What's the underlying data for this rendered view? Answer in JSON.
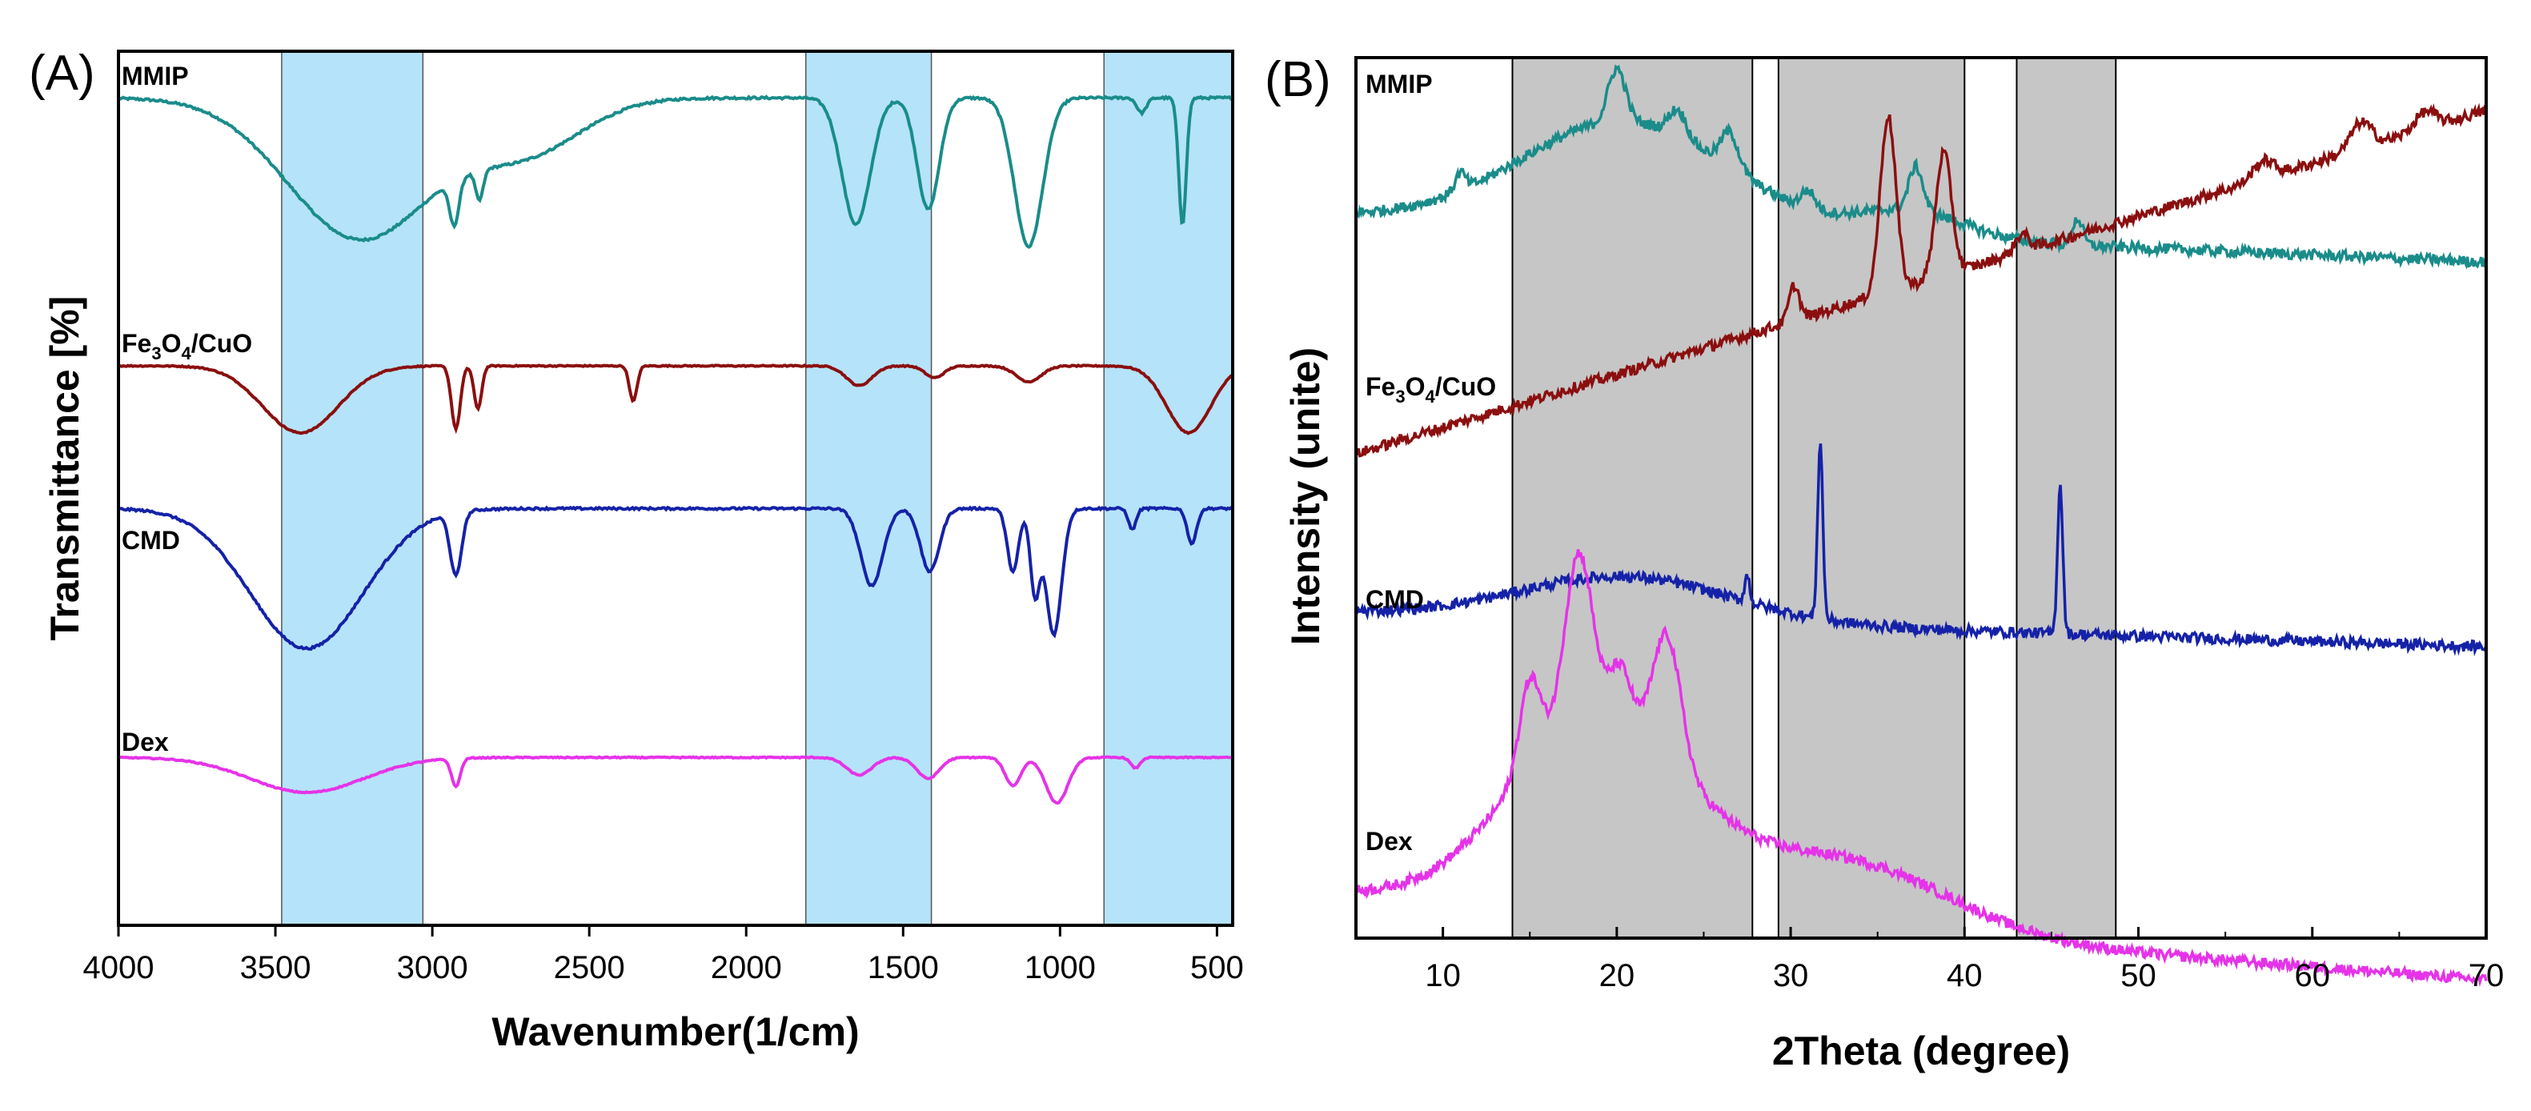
{
  "colors": {
    "mmip": "#1a8c8a",
    "fe3o4cuo": "#8b0f0f",
    "cmd": "#1522a8",
    "dex": "#e533e8",
    "band_ftir": "#b5e3f9",
    "band_xrd": "#c6c6c6",
    "axis": "#000000"
  },
  "chart_data": [
    {
      "panel": "(A)",
      "type": "line",
      "xlabel": "Wavenumber(1/cm)",
      "ylabel": "Transmittance [%]",
      "xlim": [
        4000,
        450
      ],
      "x_reversed": true,
      "x_ticks": [
        4000,
        3500,
        3000,
        2500,
        2000,
        1500,
        1000,
        500
      ],
      "x_tick_labels": [
        "4000",
        "3500",
        "3000",
        "2500",
        "2000",
        "1500",
        "1000",
        "500"
      ],
      "y_ticks": [],
      "shaded_bands": [
        [
          3480,
          3030
        ],
        [
          1810,
          1410
        ],
        [
          860,
          450
        ]
      ],
      "series": [
        {
          "name": "MMIP",
          "label_text": "MMIP",
          "color_key": "mmip",
          "offset": 0.78,
          "amplitude": 0.17,
          "baseline": 0.98,
          "features": [
            [
              3230,
              0.95,
              230
            ],
            [
              2930,
              0.3,
              15
            ],
            [
              2850,
              0.2,
              12
            ],
            [
              2700,
              0.35,
              180
            ],
            [
              1650,
              0.85,
              45
            ],
            [
              1420,
              0.75,
              35
            ],
            [
              1100,
              1.0,
              45
            ],
            [
              610,
              0.85,
              12
            ],
            [
              740,
              0.1,
              15
            ]
          ]
        },
        {
          "name": "Fe3O4/CuO",
          "label_base": "Fe",
          "label_sub1": "3",
          "label_mid": "O",
          "label_sub2": "4",
          "label_end": "/CuO",
          "color_key": "fe3o4cuo",
          "offset": 0.55,
          "amplitude": 0.09,
          "baseline": 1.0,
          "features": [
            [
              3420,
              0.85,
              120
            ],
            [
              2925,
              0.8,
              14
            ],
            [
              2855,
              0.55,
              12
            ],
            [
              2360,
              0.45,
              12
            ],
            [
              1640,
              0.25,
              40
            ],
            [
              1400,
              0.15,
              30
            ],
            [
              1100,
              0.2,
              40
            ],
            [
              590,
              0.85,
              70
            ]
          ]
        },
        {
          "name": "CMD",
          "label_text": "CMD",
          "color_key": "cmd",
          "offset": 0.32,
          "amplitude": 0.16,
          "baseline": 0.98,
          "features": [
            [
              3400,
              1.0,
              180
            ],
            [
              2925,
              0.45,
              18
            ],
            [
              1600,
              0.55,
              35
            ],
            [
              1415,
              0.45,
              30
            ],
            [
              1150,
              0.45,
              18
            ],
            [
              1080,
              0.6,
              15
            ],
            [
              1020,
              0.9,
              25
            ],
            [
              770,
              0.15,
              12
            ],
            [
              580,
              0.25,
              15
            ]
          ]
        },
        {
          "name": "Dex",
          "label_text": "Dex",
          "color_key": "dex",
          "offset": 0.12,
          "amplitude": 0.08,
          "baseline": 0.9,
          "features": [
            [
              3400,
              0.5,
              180
            ],
            [
              2925,
              0.4,
              14
            ],
            [
              1640,
              0.25,
              40
            ],
            [
              1420,
              0.3,
              35
            ],
            [
              1150,
              0.4,
              25
            ],
            [
              1010,
              0.65,
              35
            ],
            [
              760,
              0.15,
              15
            ]
          ]
        }
      ]
    },
    {
      "panel": "(B)",
      "type": "line",
      "xlabel": "2Theta (degree)",
      "ylabel": "Intensity (unite)",
      "xlim": [
        5,
        70
      ],
      "x_ticks": [
        10,
        20,
        30,
        40,
        50,
        60,
        70
      ],
      "x_tick_labels": [
        "10",
        "20",
        "30",
        "40",
        "50",
        "60",
        "70"
      ],
      "y_ticks": [],
      "shaded_bands": [
        [
          14.0,
          27.8
        ],
        [
          29.3,
          40.0
        ],
        [
          43.0,
          48.7
        ]
      ],
      "series": [
        {
          "name": "MMIP",
          "label_text": "MMIP",
          "color_key": "mmip",
          "offset": 0.82,
          "slope": -0.0008,
          "humps": [
            [
              20.5,
              0.12,
              6
            ],
            [
              37,
              0.03,
              3
            ]
          ],
          "peaks": [
            [
              20,
              0.06,
              0.5
            ],
            [
              23.5,
              0.03,
              0.5
            ],
            [
              26.5,
              0.04,
              0.5
            ],
            [
              31,
              0.02,
              0.4
            ],
            [
              37.2,
              0.05,
              0.4
            ],
            [
              46.5,
              0.03,
              0.3
            ],
            [
              11,
              0.02,
              0.3
            ]
          ]
        },
        {
          "name": "Fe3O4/CuO",
          "label_base": "Fe",
          "label_sub1": "3",
          "label_mid": "O",
          "label_sub2": "4",
          "label_end": "/CuO",
          "color_key": "fe3o4cuo",
          "offset": 0.55,
          "slope": 0.006,
          "humps": [],
          "peaks": [
            [
              30.2,
              0.04,
              0.3
            ],
            [
              35.6,
              0.2,
              0.45
            ],
            [
              38.8,
              0.14,
              0.45
            ],
            [
              43.3,
              0.02,
              0.4
            ],
            [
              57.2,
              0.02,
              0.6
            ],
            [
              62.8,
              0.03,
              0.6
            ],
            [
              66.5,
              0.02,
              0.6
            ]
          ]
        },
        {
          "name": "CMD",
          "label_text": "CMD",
          "color_key": "cmd",
          "offset": 0.37,
          "slope": -0.0006,
          "humps": [
            [
              20.5,
              0.05,
              6
            ]
          ],
          "peaks": [
            [
              27.5,
              0.03,
              0.15
            ],
            [
              31.7,
              0.2,
              0.15
            ],
            [
              45.5,
              0.17,
              0.15
            ]
          ]
        },
        {
          "name": "Dex",
          "label_text": "Dex",
          "color_key": "dex",
          "offset": 0.05,
          "slope": -0.0015,
          "humps": [
            [
              19,
              0.22,
              5
            ],
            [
              33,
              0.08,
              6
            ]
          ],
          "peaks": [
            [
              15,
              0.1,
              0.6
            ],
            [
              17.8,
              0.19,
              0.8
            ],
            [
              20.2,
              0.06,
              0.6
            ],
            [
              22.9,
              0.14,
              0.8
            ]
          ]
        }
      ]
    }
  ]
}
